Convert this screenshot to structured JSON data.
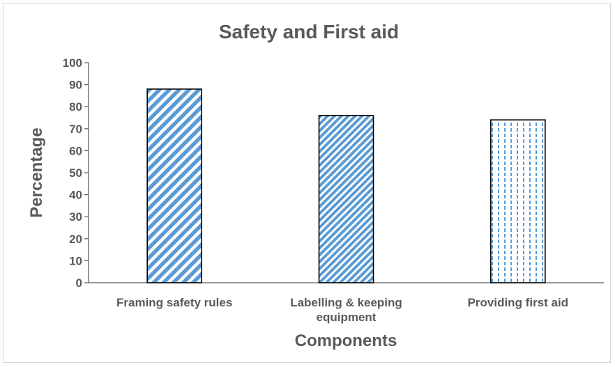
{
  "chart_data": {
    "type": "bar",
    "title": "Safety and First aid",
    "xlabel": "Components",
    "ylabel": "Percentage",
    "categories": [
      [
        "Framing safety rules"
      ],
      [
        "Labelling & keeping",
        "equipment"
      ],
      [
        "Providing first aid"
      ]
    ],
    "values": [
      88,
      76,
      74
    ],
    "ylim": [
      0,
      100
    ],
    "yticks": [
      0,
      10,
      20,
      30,
      40,
      50,
      60,
      70,
      80,
      90,
      100
    ],
    "grid": false,
    "legend": "none",
    "patterns": [
      "wide-diagonal-stripes",
      "narrow-diagonal-stripes",
      "dashed-vertical-lines"
    ],
    "colors": {
      "bar_pattern": "#5b9bd5",
      "bar_border": "#000000",
      "text": "#595959",
      "axis": "#595959"
    }
  }
}
